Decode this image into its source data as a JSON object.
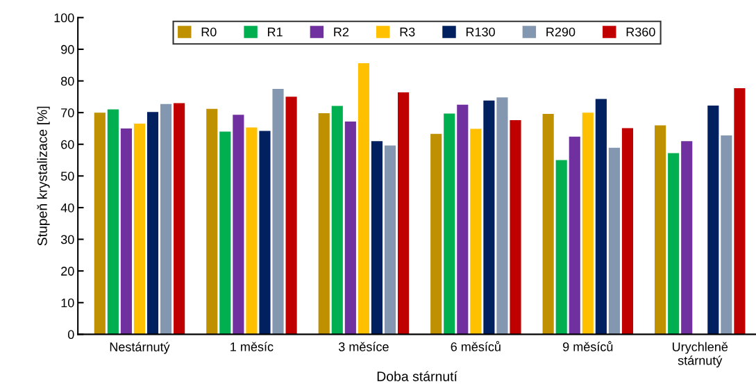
{
  "chart_data": {
    "type": "bar",
    "xlabel": "Doba stárnutí",
    "ylabel": "Stupeň krystalizace [%]",
    "categories": [
      "Nestárnutý",
      "1 měsíc",
      "3 měsíce",
      "6 měsíců",
      "9 měsíců",
      "Urychleně\nstárnutý"
    ],
    "series": [
      {
        "name": "R0",
        "color": "#bf9000",
        "values": [
          70.0,
          71.2,
          69.8,
          63.3,
          69.6,
          66.0
        ]
      },
      {
        "name": "R1",
        "color": "#00b050",
        "values": [
          71.0,
          64.0,
          72.1,
          69.7,
          55.0,
          57.2
        ]
      },
      {
        "name": "R2",
        "color": "#7030a0",
        "values": [
          65.0,
          69.3,
          67.2,
          72.5,
          62.4,
          61.0
        ]
      },
      {
        "name": "R3",
        "color": "#ffc000",
        "values": [
          66.5,
          65.3,
          85.6,
          64.9,
          70.0,
          null
        ]
      },
      {
        "name": "R130",
        "color": "#002060",
        "values": [
          70.2,
          64.2,
          61.0,
          73.8,
          74.3,
          72.2
        ]
      },
      {
        "name": "R290",
        "color": "#8497b0",
        "values": [
          72.7,
          77.5,
          59.6,
          74.8,
          58.9,
          62.8
        ]
      },
      {
        "name": "R360",
        "color": "#c00000",
        "values": [
          73.0,
          75.0,
          76.4,
          67.6,
          65.1,
          77.7
        ]
      }
    ],
    "ylim": [
      0,
      100
    ],
    "yticks": [
      0,
      10,
      20,
      30,
      40,
      50,
      60,
      70,
      80,
      90,
      100
    ],
    "grid": false,
    "legend": "top"
  }
}
